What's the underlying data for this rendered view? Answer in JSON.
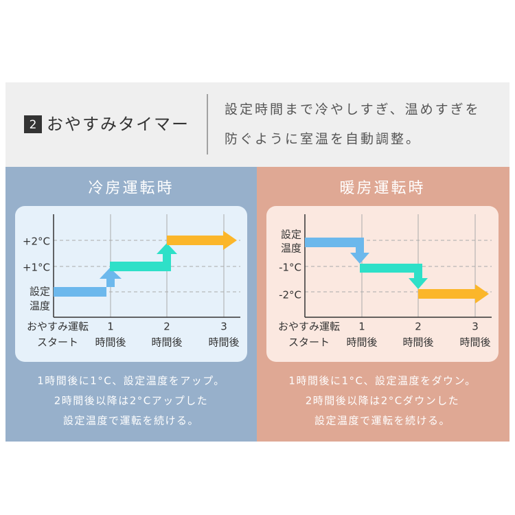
{
  "header": {
    "badge": "2",
    "title": "おやすみタイマー",
    "description": [
      "設定時間まで冷やしすぎ、温めすぎを",
      "防ぐように室温を自動調整。"
    ]
  },
  "panels": [
    {
      "heading": "冷房運転時",
      "y_labels": [
        "+2°C",
        "+1°C",
        [
          "設定",
          "温度"
        ]
      ],
      "x_start": [
        "おやすみ運転",
        "スタート"
      ],
      "x_ticks": [
        {
          "num": "1",
          "label": "時間後"
        },
        {
          "num": "2",
          "label": "時間後"
        },
        {
          "num": "3",
          "label": "時間後"
        }
      ],
      "caption": [
        "1時間後に1°C、設定温度をアップ。",
        "2時間後以降は2°Cアップした",
        "設定温度で運転を続ける。"
      ]
    },
    {
      "heading": "暖房運転時",
      "y_labels": [
        [
          "設定",
          "温度"
        ],
        "-1°C",
        "-2°C"
      ],
      "x_start": [
        "おやすみ運転",
        "スタート"
      ],
      "x_ticks": [
        {
          "num": "1",
          "label": "時間後"
        },
        {
          "num": "2",
          "label": "時間後"
        },
        {
          "num": "3",
          "label": "時間後"
        }
      ],
      "caption": [
        "1時間後に1°C、設定温度をダウン。",
        "2時間後以降は2°Cダウンした",
        "設定温度で運転を続ける。"
      ]
    }
  ]
}
